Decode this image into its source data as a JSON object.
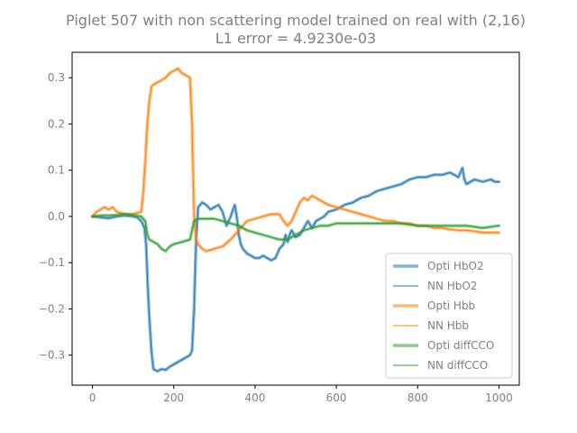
{
  "chart_data": {
    "type": "line",
    "title": "Piglet 507 with non scattering model trained on real with (2,16)",
    "subtitle": "L1 error = 4.9230e-03",
    "xlabel": "",
    "ylabel": "",
    "xlim": [
      -50,
      1050
    ],
    "ylim": [
      -0.365,
      0.355
    ],
    "xticks": [
      0,
      200,
      400,
      600,
      800,
      1000
    ],
    "yticks": [
      -0.3,
      -0.2,
      -0.1,
      0.0,
      0.1,
      0.2,
      0.3
    ],
    "xtick_labels": [
      "0",
      "200",
      "400",
      "600",
      "800",
      "1000"
    ],
    "ytick_labels": [
      "−0.3",
      "−0.2",
      "−0.1",
      "0.0",
      "0.1",
      "0.2",
      "0.3"
    ],
    "grid": false,
    "legend_position": "lower-right",
    "series": [
      {
        "name": "Opti HbO2",
        "color": "#1f77b4",
        "style": "thick",
        "x": [
          0,
          20,
          40,
          60,
          80,
          100,
          110,
          120,
          128,
          132,
          136,
          140,
          145,
          150,
          160,
          170,
          180,
          190,
          200,
          220,
          240,
          245,
          250,
          255,
          260,
          270,
          280,
          290,
          300,
          310,
          320,
          330,
          340,
          350,
          355,
          360,
          365,
          370,
          380,
          390,
          400,
          410,
          420,
          430,
          440,
          450,
          460,
          470,
          475,
          480,
          485,
          490,
          500,
          510,
          520,
          530,
          540,
          550,
          560,
          570,
          580,
          600,
          620,
          640,
          660,
          680,
          700,
          720,
          740,
          760,
          780,
          800,
          820,
          840,
          860,
          880,
          900,
          905,
          910,
          915,
          920,
          940,
          960,
          980,
          990,
          1000
        ],
        "y": [
          0.0,
          -0.002,
          -0.004,
          0.0,
          0.002,
          0.0,
          -0.002,
          -0.01,
          -0.025,
          -0.06,
          -0.15,
          -0.22,
          -0.29,
          -0.33,
          -0.335,
          -0.33,
          -0.332,
          -0.325,
          -0.32,
          -0.31,
          -0.3,
          -0.29,
          -0.2,
          -0.05,
          0.02,
          0.03,
          0.025,
          0.015,
          0.02,
          0.025,
          0.01,
          -0.02,
          0.0,
          0.025,
          0.0,
          -0.04,
          -0.06,
          -0.07,
          -0.08,
          -0.085,
          -0.09,
          -0.09,
          -0.085,
          -0.09,
          -0.095,
          -0.09,
          -0.07,
          -0.06,
          -0.04,
          -0.055,
          -0.04,
          -0.03,
          -0.045,
          -0.04,
          -0.025,
          -0.01,
          -0.025,
          -0.01,
          -0.005,
          0.0,
          0.01,
          0.015,
          0.025,
          0.03,
          0.04,
          0.045,
          0.055,
          0.06,
          0.065,
          0.07,
          0.08,
          0.085,
          0.085,
          0.09,
          0.09,
          0.095,
          0.085,
          0.095,
          0.105,
          0.08,
          0.07,
          0.08,
          0.075,
          0.08,
          0.075,
          0.075
        ]
      },
      {
        "name": "NN HbO2",
        "color": "#1f77b4",
        "style": "thin",
        "x": [
          0,
          20,
          40,
          60,
          80,
          100,
          110,
          120,
          128,
          132,
          136,
          140,
          145,
          150,
          160,
          170,
          180,
          190,
          200,
          220,
          240,
          245,
          250,
          255,
          260,
          270,
          280,
          290,
          300,
          310,
          320,
          330,
          340,
          350,
          355,
          360,
          365,
          370,
          380,
          390,
          400,
          410,
          420,
          430,
          440,
          450,
          460,
          470,
          475,
          480,
          485,
          490,
          500,
          510,
          520,
          530,
          540,
          550,
          560,
          570,
          580,
          600,
          620,
          640,
          660,
          680,
          700,
          720,
          740,
          760,
          780,
          800,
          820,
          840,
          860,
          880,
          900,
          905,
          910,
          915,
          920,
          940,
          960,
          980,
          990,
          1000
        ],
        "y": [
          0.0,
          -0.002,
          -0.004,
          0.0,
          0.002,
          0.0,
          -0.002,
          -0.01,
          -0.025,
          -0.06,
          -0.15,
          -0.22,
          -0.29,
          -0.33,
          -0.335,
          -0.33,
          -0.332,
          -0.325,
          -0.32,
          -0.31,
          -0.3,
          -0.29,
          -0.2,
          -0.05,
          0.02,
          0.03,
          0.025,
          0.015,
          0.02,
          0.025,
          0.01,
          -0.02,
          0.0,
          0.025,
          0.0,
          -0.04,
          -0.06,
          -0.07,
          -0.08,
          -0.085,
          -0.09,
          -0.09,
          -0.085,
          -0.09,
          -0.095,
          -0.09,
          -0.07,
          -0.06,
          -0.04,
          -0.055,
          -0.04,
          -0.03,
          -0.045,
          -0.04,
          -0.025,
          -0.01,
          -0.025,
          -0.01,
          -0.005,
          0.0,
          0.01,
          0.015,
          0.025,
          0.03,
          0.04,
          0.045,
          0.055,
          0.06,
          0.065,
          0.07,
          0.08,
          0.085,
          0.085,
          0.09,
          0.09,
          0.095,
          0.085,
          0.095,
          0.105,
          0.08,
          0.07,
          0.08,
          0.075,
          0.08,
          0.075,
          0.075
        ]
      },
      {
        "name": "Opti Hbb",
        "color": "#ff7f0e",
        "style": "thick",
        "x": [
          0,
          10,
          20,
          30,
          40,
          50,
          60,
          80,
          100,
          120,
          125,
          130,
          135,
          140,
          145,
          150,
          160,
          170,
          180,
          190,
          200,
          210,
          220,
          240,
          245,
          250,
          255,
          260,
          270,
          280,
          300,
          320,
          340,
          360,
          380,
          400,
          420,
          440,
          460,
          470,
          480,
          490,
          500,
          505,
          510,
          520,
          530,
          540,
          550,
          560,
          570,
          580,
          600,
          620,
          640,
          660,
          680,
          700,
          720,
          740,
          760,
          780,
          800,
          820,
          840,
          860,
          880,
          900,
          920,
          940,
          960,
          980,
          1000
        ],
        "y": [
          0.0,
          0.01,
          0.015,
          0.02,
          0.015,
          0.02,
          0.01,
          0.005,
          0.005,
          0.01,
          0.05,
          0.12,
          0.2,
          0.25,
          0.28,
          0.285,
          0.29,
          0.295,
          0.3,
          0.31,
          0.315,
          0.32,
          0.31,
          0.3,
          0.2,
          0.0,
          -0.05,
          -0.06,
          -0.07,
          -0.075,
          -0.07,
          -0.065,
          -0.05,
          -0.03,
          -0.01,
          -0.005,
          0.0,
          0.005,
          0.005,
          -0.01,
          -0.02,
          -0.01,
          0.01,
          0.02,
          0.03,
          0.04,
          0.035,
          0.045,
          0.04,
          0.035,
          0.03,
          0.025,
          0.02,
          0.015,
          0.01,
          0.005,
          0.0,
          -0.005,
          -0.01,
          -0.01,
          -0.015,
          -0.015,
          -0.02,
          -0.02,
          -0.025,
          -0.025,
          -0.028,
          -0.03,
          -0.03,
          -0.032,
          -0.035,
          -0.035,
          -0.035
        ]
      },
      {
        "name": "NN Hbb",
        "color": "#ff7f0e",
        "style": "thin",
        "x": [
          0,
          10,
          20,
          30,
          40,
          50,
          60,
          80,
          100,
          120,
          125,
          130,
          135,
          140,
          145,
          150,
          160,
          170,
          180,
          190,
          200,
          210,
          220,
          240,
          245,
          250,
          255,
          260,
          270,
          280,
          300,
          320,
          340,
          360,
          380,
          400,
          420,
          440,
          460,
          470,
          480,
          490,
          500,
          505,
          510,
          520,
          530,
          540,
          550,
          560,
          570,
          580,
          600,
          620,
          640,
          660,
          680,
          700,
          720,
          740,
          760,
          780,
          800,
          820,
          840,
          860,
          880,
          900,
          920,
          940,
          960,
          980,
          1000
        ],
        "y": [
          0.0,
          0.01,
          0.015,
          0.02,
          0.015,
          0.02,
          0.01,
          0.005,
          0.005,
          0.01,
          0.05,
          0.12,
          0.2,
          0.25,
          0.28,
          0.285,
          0.29,
          0.295,
          0.3,
          0.31,
          0.315,
          0.32,
          0.31,
          0.3,
          0.2,
          0.0,
          -0.05,
          -0.06,
          -0.07,
          -0.075,
          -0.07,
          -0.065,
          -0.05,
          -0.03,
          -0.01,
          -0.005,
          0.0,
          0.005,
          0.005,
          -0.01,
          -0.02,
          -0.01,
          0.01,
          0.02,
          0.03,
          0.04,
          0.035,
          0.045,
          0.04,
          0.035,
          0.03,
          0.025,
          0.02,
          0.015,
          0.01,
          0.005,
          0.0,
          -0.005,
          -0.01,
          -0.01,
          -0.015,
          -0.015,
          -0.02,
          -0.02,
          -0.025,
          -0.025,
          -0.028,
          -0.03,
          -0.03,
          -0.032,
          -0.035,
          -0.035,
          -0.035
        ]
      },
      {
        "name": "Opti diffCCO",
        "color": "#2ca02c",
        "style": "thick",
        "x": [
          0,
          20,
          40,
          60,
          80,
          100,
          120,
          130,
          135,
          140,
          150,
          160,
          170,
          180,
          190,
          200,
          220,
          240,
          250,
          260,
          280,
          300,
          320,
          340,
          360,
          380,
          400,
          420,
          440,
          460,
          480,
          500,
          520,
          540,
          560,
          580,
          600,
          640,
          680,
          720,
          760,
          800,
          840,
          880,
          920,
          960,
          1000
        ],
        "y": [
          0.0,
          0.002,
          0.002,
          0.003,
          0.005,
          0.003,
          0.0,
          -0.01,
          -0.04,
          -0.05,
          -0.055,
          -0.06,
          -0.07,
          -0.075,
          -0.065,
          -0.06,
          -0.055,
          -0.05,
          -0.01,
          -0.005,
          -0.005,
          -0.005,
          -0.01,
          -0.015,
          -0.02,
          -0.03,
          -0.035,
          -0.04,
          -0.045,
          -0.05,
          -0.05,
          -0.04,
          -0.03,
          -0.025,
          -0.02,
          -0.02,
          -0.015,
          -0.015,
          -0.015,
          -0.015,
          -0.015,
          -0.02,
          -0.02,
          -0.02,
          -0.02,
          -0.025,
          -0.02
        ]
      },
      {
        "name": "NN diffCCO",
        "color": "#2ca02c",
        "style": "thin",
        "x": [
          0,
          20,
          40,
          60,
          80,
          100,
          120,
          130,
          135,
          140,
          150,
          160,
          170,
          180,
          190,
          200,
          220,
          240,
          250,
          260,
          280,
          300,
          320,
          340,
          360,
          380,
          400,
          420,
          440,
          460,
          480,
          500,
          520,
          540,
          560,
          580,
          600,
          640,
          680,
          720,
          760,
          800,
          840,
          880,
          920,
          960,
          1000
        ],
        "y": [
          0.0,
          0.002,
          0.002,
          0.003,
          0.005,
          0.003,
          0.0,
          -0.01,
          -0.04,
          -0.05,
          -0.055,
          -0.06,
          -0.07,
          -0.075,
          -0.065,
          -0.06,
          -0.055,
          -0.05,
          -0.01,
          -0.005,
          -0.005,
          -0.005,
          -0.01,
          -0.015,
          -0.02,
          -0.03,
          -0.035,
          -0.04,
          -0.045,
          -0.05,
          -0.05,
          -0.04,
          -0.03,
          -0.025,
          -0.02,
          -0.02,
          -0.015,
          -0.015,
          -0.015,
          -0.015,
          -0.015,
          -0.02,
          -0.02,
          -0.02,
          -0.02,
          -0.025,
          -0.02
        ]
      }
    ]
  }
}
